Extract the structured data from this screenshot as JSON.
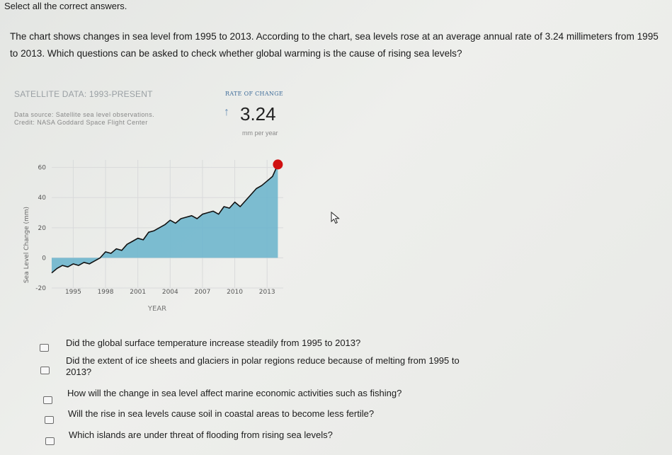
{
  "instruction": "Select all the correct answers.",
  "question": "The chart shows changes in sea level from 1995 to 2013. According to the chart, sea levels rose at an average annual rate of 3.24 millimeters from 1995 to 2013. Which questions can be asked to check whether global warming is the cause of rising sea levels?",
  "panel": {
    "title": "SATELLITE DATA: 1993-PRESENT",
    "source_line1": "Data source: Satellite sea level observations.",
    "source_line2": "Credit: NASA Goddard Space Flight Center",
    "rate_title": "RATE OF CHANGE",
    "rate_arrow": "↑",
    "rate_value": "3.24",
    "rate_unit": "mm per year"
  },
  "chart_data": {
    "type": "area",
    "ylabel": "Sea Level Change (mm)",
    "xlabel": "YEAR",
    "xlim": [
      1993,
      2014.5
    ],
    "ylim": [
      -20,
      65
    ],
    "x_ticks": [
      1995,
      1998,
      2001,
      2004,
      2007,
      2010,
      2013
    ],
    "y_ticks": [
      -20,
      0,
      20,
      40,
      60
    ],
    "x": [
      1993.0,
      1993.5,
      1994.0,
      1994.5,
      1995.0,
      1995.5,
      1996.0,
      1996.5,
      1997.0,
      1997.5,
      1998.0,
      1998.5,
      1999.0,
      1999.5,
      2000.0,
      2000.5,
      2001.0,
      2001.5,
      2002.0,
      2002.5,
      2003.0,
      2003.5,
      2004.0,
      2004.5,
      2005.0,
      2005.5,
      2006.0,
      2006.5,
      2007.0,
      2007.5,
      2008.0,
      2008.5,
      2009.0,
      2009.5,
      2010.0,
      2010.5,
      2011.0,
      2011.5,
      2012.0,
      2012.5,
      2013.0,
      2013.5,
      2014.0
    ],
    "y": [
      -10,
      -7,
      -5,
      -6,
      -4,
      -5,
      -3,
      -4,
      -2,
      0,
      4,
      3,
      6,
      5,
      9,
      11,
      13,
      12,
      17,
      18,
      20,
      22,
      25,
      23,
      26,
      27,
      28,
      26,
      29,
      30,
      31,
      29,
      34,
      33,
      37,
      34,
      38,
      42,
      46,
      48,
      51,
      54,
      62
    ],
    "highlight_point": {
      "x": 2014.0,
      "y": 62
    },
    "fill_color": "#6fb6cd",
    "line_color": "#111111",
    "point_color": "#d01010"
  },
  "options": [
    {
      "text": "Did the global surface temperature increase steadily from 1995 to 2013?"
    },
    {
      "text": "Did the extent of ice sheets and glaciers in polar regions reduce because of melting from 1995 to 2013?"
    },
    {
      "text": "How will the change in sea level affect marine economic activities such as fishing?"
    },
    {
      "text": "Will the rise in sea levels cause soil in coastal areas to become less fertile?"
    },
    {
      "text": "Which islands are under threat of flooding from rising sea levels?"
    }
  ]
}
